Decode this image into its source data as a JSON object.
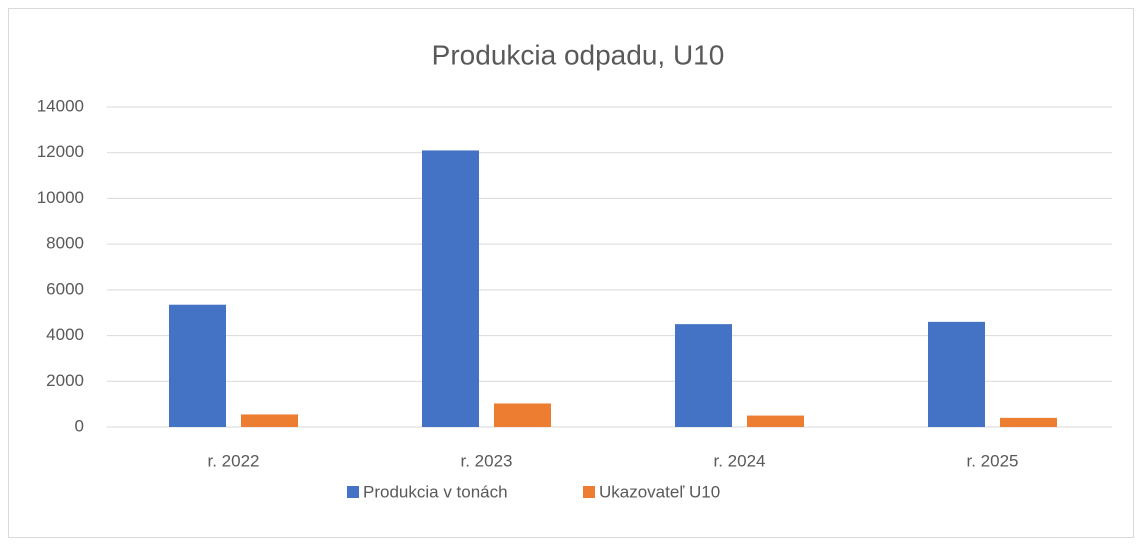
{
  "chart_data": {
    "type": "bar",
    "title": "Produkcia odpadu, U10",
    "categories": [
      "r. 2022",
      "r. 2023",
      "r. 2024",
      "r. 2025"
    ],
    "series": [
      {
        "name": "Produkcia v tonách",
        "color": "#4472c4",
        "values": [
          5350,
          12100,
          4500,
          4600
        ]
      },
      {
        "name": "Ukazovateľ U10",
        "color": "#ed7d31",
        "values": [
          550,
          1030,
          500,
          400
        ]
      }
    ],
    "ylim": [
      0,
      14000
    ],
    "yticks": [
      0,
      2000,
      4000,
      6000,
      8000,
      10000,
      12000,
      14000
    ],
    "grid": true,
    "legend": "bottom"
  }
}
